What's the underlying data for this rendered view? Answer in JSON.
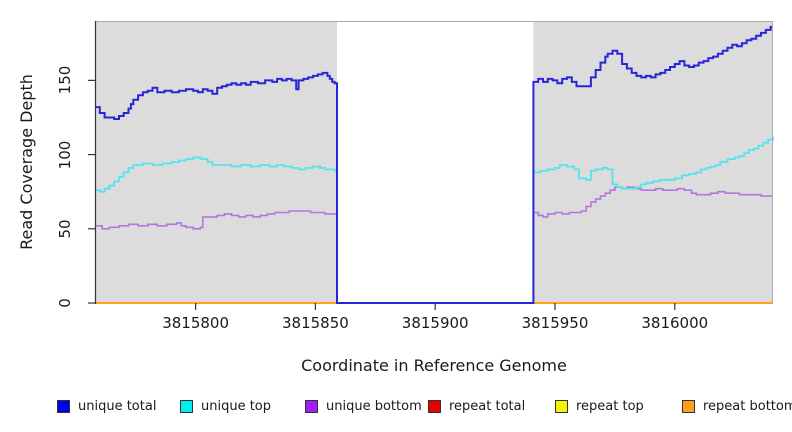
{
  "figure": {
    "y_axis_title": "Read Coverage Depth",
    "x_axis_title": "Coordinate in Reference Genome"
  },
  "colors": {
    "panel_fill": "#dcdcdc",
    "panel_border": "#ababab",
    "mask_fill": "#ffffff",
    "axis": "#333333",
    "text": "#1a1a1a"
  },
  "legend": {
    "items": [
      {
        "label": "unique total",
        "swatch_color": "#0000ee"
      },
      {
        "label": "unique top",
        "swatch_color": "#00eeee"
      },
      {
        "label": "unique bottom",
        "swatch_color": "#a020f0"
      },
      {
        "label": "repeat total",
        "swatch_color": "#e60000"
      },
      {
        "label": "repeat top",
        "swatch_color": "#f5f500"
      },
      {
        "label": "repeat bottom",
        "swatch_color": "#ffa01e"
      }
    ]
  },
  "chart_data": {
    "type": "line",
    "subtype": "step-after",
    "title": "",
    "xlabel": "Coordinate in Reference Genome",
    "ylabel": "Read Coverage Depth",
    "x_domain": [
      3815758,
      3816041
    ],
    "y_domain": [
      0,
      190
    ],
    "grid": false,
    "legend_position": "bottom",
    "x_ticks": [
      {
        "value": 3815800,
        "label": "3815800"
      },
      {
        "value": 3815850,
        "label": "3815850"
      },
      {
        "value": 3815900,
        "label": "3815900"
      },
      {
        "value": 3815950,
        "label": "3815950"
      },
      {
        "value": 3816000,
        "label": "3816000"
      }
    ],
    "y_ticks": [
      {
        "value": 0,
        "label": "0"
      },
      {
        "value": 50,
        "label": "50"
      },
      {
        "value": 100,
        "label": "100"
      },
      {
        "value": 150,
        "label": "150"
      }
    ],
    "masked_region": {
      "x_start": 3815859,
      "x_end": 3815941
    },
    "series": [
      {
        "name": "repeat total",
        "color": "#e60000",
        "width": 2,
        "points": [
          [
            3815758,
            0
          ],
          [
            3816041,
            0
          ]
        ]
      },
      {
        "name": "repeat top",
        "color": "#f5f500",
        "width": 2,
        "points": [
          [
            3815758,
            0
          ],
          [
            3816041,
            0
          ]
        ]
      },
      {
        "name": "repeat bottom",
        "color": "#ffa01e",
        "width": 2,
        "points": [
          [
            3815758,
            0
          ],
          [
            3816041,
            0
          ]
        ]
      },
      {
        "name": "unique bottom",
        "color": "#b277de",
        "width": 1.6,
        "points": [
          [
            3815758,
            52
          ],
          [
            3815761,
            50
          ],
          [
            3815764,
            51
          ],
          [
            3815768,
            52
          ],
          [
            3815772,
            53
          ],
          [
            3815776,
            52
          ],
          [
            3815780,
            53
          ],
          [
            3815784,
            52
          ],
          [
            3815788,
            53
          ],
          [
            3815792,
            54
          ],
          [
            3815794,
            52
          ],
          [
            3815796,
            51
          ],
          [
            3815799,
            50
          ],
          [
            3815802,
            51
          ],
          [
            3815803,
            58
          ],
          [
            3815806,
            58
          ],
          [
            3815809,
            59
          ],
          [
            3815812,
            60
          ],
          [
            3815815,
            59
          ],
          [
            3815818,
            58
          ],
          [
            3815821,
            59
          ],
          [
            3815824,
            58
          ],
          [
            3815827,
            59
          ],
          [
            3815830,
            60
          ],
          [
            3815833,
            61
          ],
          [
            3815836,
            61
          ],
          [
            3815839,
            62
          ],
          [
            3815842,
            62
          ],
          [
            3815845,
            62
          ],
          [
            3815848,
            61
          ],
          [
            3815851,
            61
          ],
          [
            3815854,
            60
          ],
          [
            3815858,
            60
          ],
          [
            3815859,
            0
          ],
          [
            3815941,
            61
          ],
          [
            3815943,
            59
          ],
          [
            3815945,
            58
          ],
          [
            3815947,
            60
          ],
          [
            3815950,
            61
          ],
          [
            3815953,
            60
          ],
          [
            3815956,
            61
          ],
          [
            3815959,
            61
          ],
          [
            3815961,
            62
          ],
          [
            3815963,
            65
          ],
          [
            3815965,
            68
          ],
          [
            3815967,
            70
          ],
          [
            3815969,
            72
          ],
          [
            3815971,
            74
          ],
          [
            3815973,
            76
          ],
          [
            3815975,
            78
          ],
          [
            3815978,
            77
          ],
          [
            3815980,
            78
          ],
          [
            3815983,
            77
          ],
          [
            3815986,
            76
          ],
          [
            3815989,
            76
          ],
          [
            3815992,
            77
          ],
          [
            3815995,
            76
          ],
          [
            3815998,
            76
          ],
          [
            3816001,
            77
          ],
          [
            3816004,
            76
          ],
          [
            3816007,
            74
          ],
          [
            3816009,
            73
          ],
          [
            3816012,
            73
          ],
          [
            3816015,
            74
          ],
          [
            3816018,
            75
          ],
          [
            3816021,
            74
          ],
          [
            3816024,
            74
          ],
          [
            3816027,
            73
          ],
          [
            3816030,
            73
          ],
          [
            3816033,
            73
          ],
          [
            3816036,
            72
          ],
          [
            3816039,
            72
          ],
          [
            3816041,
            72
          ]
        ]
      },
      {
        "name": "unique top",
        "color": "#55e4ec",
        "width": 1.8,
        "points": [
          [
            3815758,
            76
          ],
          [
            3815760,
            75
          ],
          [
            3815762,
            77
          ],
          [
            3815764,
            79
          ],
          [
            3815766,
            82
          ],
          [
            3815768,
            85
          ],
          [
            3815770,
            88
          ],
          [
            3815772,
            91
          ],
          [
            3815774,
            93
          ],
          [
            3815778,
            94
          ],
          [
            3815782,
            93
          ],
          [
            3815786,
            94
          ],
          [
            3815790,
            95
          ],
          [
            3815793,
            96
          ],
          [
            3815796,
            97
          ],
          [
            3815799,
            98
          ],
          [
            3815802,
            97
          ],
          [
            3815805,
            95
          ],
          [
            3815807,
            93
          ],
          [
            3815811,
            93
          ],
          [
            3815815,
            92
          ],
          [
            3815819,
            93
          ],
          [
            3815823,
            92
          ],
          [
            3815827,
            93
          ],
          [
            3815831,
            92
          ],
          [
            3815834,
            93
          ],
          [
            3815837,
            92
          ],
          [
            3815840,
            91
          ],
          [
            3815843,
            90
          ],
          [
            3815846,
            91
          ],
          [
            3815849,
            92
          ],
          [
            3815852,
            91
          ],
          [
            3815854,
            90
          ],
          [
            3815856,
            90
          ],
          [
            3815858,
            89
          ],
          [
            3815859,
            0
          ],
          [
            3815941,
            88
          ],
          [
            3815944,
            89
          ],
          [
            3815947,
            90
          ],
          [
            3815950,
            91
          ],
          [
            3815952,
            93
          ],
          [
            3815955,
            92
          ],
          [
            3815958,
            90
          ],
          [
            3815960,
            84
          ],
          [
            3815963,
            83
          ],
          [
            3815965,
            89
          ],
          [
            3815967,
            90
          ],
          [
            3815970,
            91
          ],
          [
            3815972,
            90
          ],
          [
            3815974,
            80
          ],
          [
            3815976,
            78
          ],
          [
            3815978,
            77
          ],
          [
            3815981,
            77
          ],
          [
            3815984,
            78
          ],
          [
            3815986,
            80
          ],
          [
            3815988,
            81
          ],
          [
            3815991,
            82
          ],
          [
            3815994,
            83
          ],
          [
            3815997,
            83
          ],
          [
            3816000,
            84
          ],
          [
            3816003,
            86
          ],
          [
            3816006,
            87
          ],
          [
            3816009,
            88
          ],
          [
            3816011,
            90
          ],
          [
            3816013,
            91
          ],
          [
            3816015,
            92
          ],
          [
            3816017,
            93
          ],
          [
            3816019,
            95
          ],
          [
            3816022,
            97
          ],
          [
            3816025,
            98
          ],
          [
            3816027,
            99
          ],
          [
            3816029,
            101
          ],
          [
            3816031,
            103
          ],
          [
            3816033,
            104
          ],
          [
            3816035,
            106
          ],
          [
            3816037,
            108
          ],
          [
            3816039,
            110
          ],
          [
            3816041,
            112
          ]
        ]
      },
      {
        "name": "unique total",
        "color": "#2727d8",
        "width": 2,
        "points": [
          [
            3815758,
            132
          ],
          [
            3815760,
            128
          ],
          [
            3815762,
            125
          ],
          [
            3815766,
            124
          ],
          [
            3815768,
            126
          ],
          [
            3815770,
            128
          ],
          [
            3815772,
            131
          ],
          [
            3815773,
            134
          ],
          [
            3815774,
            137
          ],
          [
            3815776,
            140
          ],
          [
            3815778,
            142
          ],
          [
            3815780,
            143
          ],
          [
            3815782,
            145
          ],
          [
            3815784,
            142
          ],
          [
            3815787,
            143
          ],
          [
            3815790,
            142
          ],
          [
            3815793,
            143
          ],
          [
            3815796,
            144
          ],
          [
            3815799,
            143
          ],
          [
            3815801,
            142
          ],
          [
            3815803,
            144
          ],
          [
            3815805,
            143
          ],
          [
            3815807,
            141
          ],
          [
            3815809,
            145
          ],
          [
            3815811,
            146
          ],
          [
            3815813,
            147
          ],
          [
            3815815,
            148
          ],
          [
            3815817,
            147
          ],
          [
            3815819,
            148
          ],
          [
            3815821,
            147
          ],
          [
            3815823,
            149
          ],
          [
            3815826,
            148
          ],
          [
            3815829,
            150
          ],
          [
            3815832,
            149
          ],
          [
            3815834,
            151
          ],
          [
            3815836,
            150
          ],
          [
            3815838,
            151
          ],
          [
            3815840,
            150
          ],
          [
            3815842,
            144
          ],
          [
            3815843,
            150
          ],
          [
            3815845,
            151
          ],
          [
            3815847,
            152
          ],
          [
            3815849,
            153
          ],
          [
            3815851,
            154
          ],
          [
            3815853,
            155
          ],
          [
            3815855,
            153
          ],
          [
            3815856,
            151
          ],
          [
            3815857,
            149
          ],
          [
            3815858,
            148
          ],
          [
            3815859,
            0
          ],
          [
            3815941,
            149
          ],
          [
            3815943,
            151
          ],
          [
            3815945,
            149
          ],
          [
            3815947,
            151
          ],
          [
            3815949,
            150
          ],
          [
            3815951,
            148
          ],
          [
            3815953,
            151
          ],
          [
            3815955,
            152
          ],
          [
            3815957,
            149
          ],
          [
            3815959,
            146
          ],
          [
            3815963,
            146
          ],
          [
            3815965,
            152
          ],
          [
            3815967,
            157
          ],
          [
            3815969,
            162
          ],
          [
            3815971,
            166
          ],
          [
            3815972,
            168
          ],
          [
            3815974,
            170
          ],
          [
            3815976,
            168
          ],
          [
            3815978,
            161
          ],
          [
            3815980,
            158
          ],
          [
            3815982,
            155
          ],
          [
            3815984,
            153
          ],
          [
            3815986,
            152
          ],
          [
            3815988,
            153
          ],
          [
            3815990,
            152
          ],
          [
            3815992,
            154
          ],
          [
            3815994,
            155
          ],
          [
            3815996,
            157
          ],
          [
            3815998,
            159
          ],
          [
            3816000,
            161
          ],
          [
            3816002,
            163
          ],
          [
            3816004,
            160
          ],
          [
            3816006,
            159
          ],
          [
            3816008,
            160
          ],
          [
            3816010,
            162
          ],
          [
            3816012,
            163
          ],
          [
            3816014,
            165
          ],
          [
            3816016,
            166
          ],
          [
            3816018,
            168
          ],
          [
            3816020,
            170
          ],
          [
            3816022,
            172
          ],
          [
            3816024,
            174
          ],
          [
            3816026,
            173
          ],
          [
            3816028,
            175
          ],
          [
            3816030,
            177
          ],
          [
            3816032,
            178
          ],
          [
            3816034,
            180
          ],
          [
            3816036,
            182
          ],
          [
            3816038,
            184
          ],
          [
            3816040,
            186
          ],
          [
            3816041,
            186
          ]
        ]
      }
    ]
  }
}
